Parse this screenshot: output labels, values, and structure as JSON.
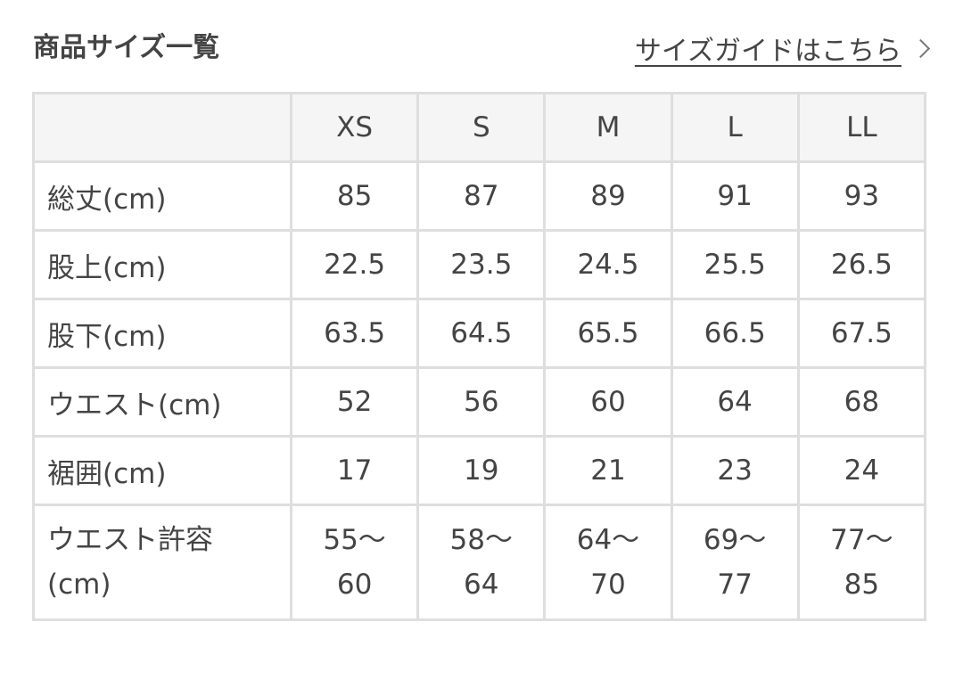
{
  "title": "商品サイズ一覧",
  "guide_link": "サイズガイドはこちら",
  "table": {
    "sizes": [
      "XS",
      "S",
      "M",
      "L",
      "LL"
    ],
    "rows": [
      {
        "label": "総丈(cm)",
        "values": [
          "85",
          "87",
          "89",
          "91",
          "93"
        ]
      },
      {
        "label": "股上(cm)",
        "values": [
          "22.5",
          "23.5",
          "24.5",
          "25.5",
          "26.5"
        ]
      },
      {
        "label": "股下(cm)",
        "values": [
          "63.5",
          "64.5",
          "65.5",
          "66.5",
          "67.5"
        ]
      },
      {
        "label": "ウエスト(cm)",
        "values": [
          "52",
          "56",
          "60",
          "64",
          "68"
        ]
      },
      {
        "label": "裾囲(cm)",
        "values": [
          "17",
          "19",
          "21",
          "23",
          "24"
        ]
      },
      {
        "label": "ウエスト許容(cm)",
        "values": [
          "55〜60",
          "58〜64",
          "64〜70",
          "69〜77",
          "77〜85"
        ]
      }
    ]
  }
}
